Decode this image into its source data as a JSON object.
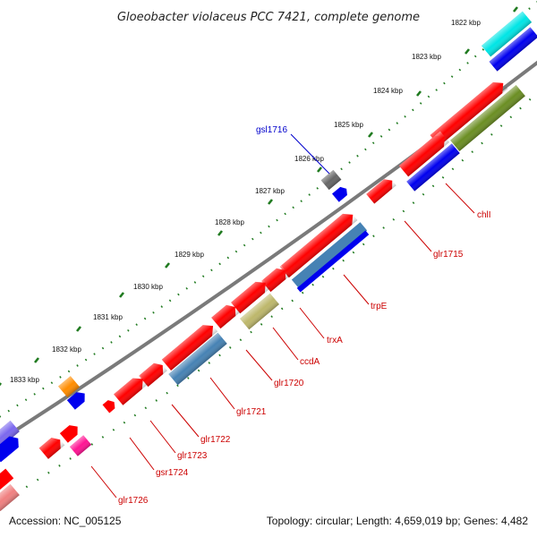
{
  "title": "Gloeobacter violaceus PCC 7421, complete genome",
  "accession": "Accession: NC_005125",
  "topology": "Topology: circular; Length: 4,659,019 bp; Genes: 4,482",
  "kbp_labels": [
    "1822 kbp",
    "1823 kbp",
    "1824 kbp",
    "1825 kbp",
    "1826 kbp",
    "1827 kbp",
    "1828 kbp",
    "1829 kbp",
    "1830 kbp",
    "1831 kbp",
    "1832 kbp",
    "1833 kbp"
  ],
  "gene_labels": {
    "gsl1716": "gsl1716",
    "chlI": "chlI",
    "glr1715": "glr1715",
    "trpE": "trpE",
    "trxA": "trxA",
    "ccdA": "ccdA",
    "glr1720": "glr1720",
    "glr1721": "glr1721",
    "glr1722": "glr1722",
    "glr1723": "glr1723",
    "gsr1724": "gsr1724",
    "glr1726": "glr1726"
  },
  "colors": {
    "backbone": "#7a7a7a",
    "tick": "#1f7a1f",
    "gene_red": "#ff0000",
    "gene_blue": "#0000ee",
    "cyan": "#00e5e5",
    "olive": "#6b8e23",
    "steel": "#4682b4",
    "khaki": "#bdb76b",
    "orange": "#ff8c00",
    "magenta": "#ff1493",
    "grey": "#666666",
    "purple": "#7b68ee",
    "pink": "#f08080",
    "label_red": "#cc0000",
    "label_blue": "#0000cc"
  }
}
